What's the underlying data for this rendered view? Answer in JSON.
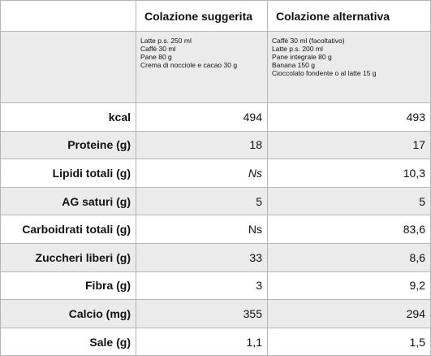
{
  "table": {
    "columns": [
      "Colazione suggerita",
      "Colazione alternativa"
    ],
    "items": [
      [
        "Latte p.s. 250 ml",
        "Caffè 30 ml",
        "Pane 80 g",
        "Crema di nocciole e cacao 30 g"
      ],
      [
        "Caffè 30 ml (facoltativo)",
        "Latte p.s. 200 ml",
        "Pane integrale 80 g",
        "Banana 150 g",
        "Cioccolato fondente o al latte 15 g"
      ]
    ],
    "rows": [
      {
        "label": "kcal",
        "values": [
          "494",
          "493"
        ]
      },
      {
        "label": "Proteine (g)",
        "values": [
          "18",
          "17"
        ]
      },
      {
        "label": "Lipidi totali (g)",
        "values": [
          "Ns",
          "10,3"
        ]
      },
      {
        "label": "AG saturi (g)",
        "values": [
          "5",
          "5"
        ]
      },
      {
        "label": "Carboidrati totali (g)",
        "values": [
          "Ns",
          "83,6"
        ]
      },
      {
        "label": "Zuccheri liberi (g)",
        "values": [
          "33",
          "8,6"
        ]
      },
      {
        "label": "Fibra (g)",
        "values": [
          "3",
          "9,2"
        ]
      },
      {
        "label": "Calcio (mg)",
        "values": [
          "355",
          "294"
        ]
      },
      {
        "label": "Sale (g)",
        "values": [
          "1,1",
          "1,5"
        ]
      }
    ]
  }
}
